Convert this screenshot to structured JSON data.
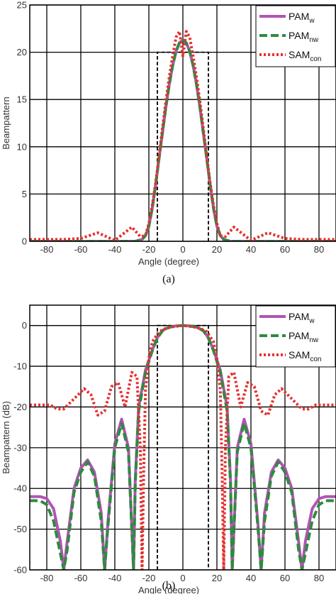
{
  "chart_data": [
    {
      "type": "line",
      "caption": "(a)",
      "xlabel": "Angle (degree)",
      "ylabel": "Beampattern",
      "xlim": [
        -90,
        90
      ],
      "ylim": [
        0,
        25
      ],
      "xticks": [
        -80,
        -60,
        -40,
        -20,
        0,
        20,
        40,
        60,
        80
      ],
      "yticks": [
        0,
        5,
        10,
        15,
        20,
        25
      ],
      "grid": true,
      "legend_position": "top-right",
      "desired_region": {
        "x": [
          -15,
          15
        ],
        "y": 20
      },
      "series": [
        {
          "name": "PAM",
          "sub": "w",
          "color": "#b154b4",
          "dash": "solid",
          "x": [
            -90,
            -40,
            -28,
            -24,
            -22,
            -20,
            -18,
            -16,
            -14,
            -12,
            -10,
            -8,
            -6,
            -4,
            -2,
            0,
            2,
            4,
            6,
            8,
            10,
            12,
            14,
            16,
            18,
            20,
            22,
            24,
            28,
            40,
            90
          ],
          "y": [
            0,
            0,
            0,
            0.2,
            0.6,
            1.6,
            3.5,
            6.0,
            8.8,
            11.5,
            14.2,
            16.6,
            18.6,
            20.1,
            21.0,
            21.3,
            21.0,
            20.1,
            18.6,
            16.6,
            14.2,
            11.5,
            8.8,
            6.0,
            3.5,
            1.6,
            0.6,
            0.2,
            0,
            0,
            0
          ]
        },
        {
          "name": "PAM",
          "sub": "nw",
          "color": "#2e8b3e",
          "dash": "dashed",
          "x": [
            -90,
            -40,
            -28,
            -24,
            -22,
            -20,
            -18,
            -16,
            -14,
            -12,
            -10,
            -8,
            -6,
            -4,
            -2,
            0,
            2,
            4,
            6,
            8,
            10,
            12,
            14,
            16,
            18,
            20,
            22,
            24,
            28,
            40,
            90
          ],
          "y": [
            0,
            0,
            0,
            0.2,
            0.6,
            1.6,
            3.5,
            6.0,
            8.8,
            11.5,
            14.2,
            16.6,
            18.6,
            20.1,
            21.0,
            21.3,
            21.0,
            20.1,
            18.6,
            16.6,
            14.2,
            11.5,
            8.8,
            6.0,
            3.5,
            1.6,
            0.6,
            0.2,
            0,
            0,
            0
          ]
        },
        {
          "name": "SAM",
          "sub": "con",
          "color": "#e53030",
          "dash": "dotted",
          "x": [
            -90,
            -70,
            -60,
            -55,
            -50,
            -45,
            -40,
            -35,
            -30,
            -25,
            -22,
            -20,
            -18,
            -16,
            -14,
            -12,
            -10,
            -8,
            -6,
            -4,
            -2,
            0,
            2,
            4,
            6,
            8,
            10,
            12,
            14,
            16,
            18,
            20,
            22,
            25,
            30,
            35,
            40,
            45,
            50,
            55,
            60,
            70,
            90
          ],
          "y": [
            0.2,
            0.2,
            0.3,
            0.6,
            0.9,
            0.5,
            0.1,
            0.8,
            1.5,
            0.5,
            0.6,
            1.9,
            3.8,
            6.2,
            9.0,
            12.0,
            14.8,
            17.4,
            19.6,
            21.6,
            22.2,
            19.6,
            22.2,
            21.6,
            19.6,
            17.4,
            14.8,
            12.0,
            9.0,
            6.2,
            3.8,
            1.9,
            0.6,
            0.5,
            1.5,
            0.8,
            0.1,
            0.5,
            0.9,
            0.6,
            0.3,
            0.2,
            0.2
          ]
        }
      ]
    },
    {
      "type": "line",
      "caption": "(b)",
      "xlabel": "Angle (degree)",
      "ylabel": "Beampattern (dB)",
      "xlim": [
        -90,
        90
      ],
      "ylim": [
        -60,
        5
      ],
      "xticks": [
        -80,
        -60,
        -40,
        -20,
        0,
        20,
        40,
        60,
        80
      ],
      "yticks": [
        -60,
        -50,
        -40,
        -30,
        -20,
        -10,
        0
      ],
      "grid": true,
      "legend_position": "top-right",
      "desired_region": {
        "x": [
          -15,
          15
        ],
        "y": 0
      },
      "series": [
        {
          "name": "PAM",
          "sub": "w",
          "color": "#b154b4",
          "dash": "solid",
          "x": [
            -90,
            -84,
            -80,
            -76,
            -72,
            -70,
            -68,
            -64,
            -60,
            -56,
            -52,
            -48,
            -46,
            -44,
            -40,
            -36,
            -32,
            -29,
            -28,
            -26,
            -22,
            -18,
            -15,
            -12,
            -8,
            -4,
            0,
            4,
            8,
            12,
            15,
            18,
            22,
            26,
            28,
            29,
            32,
            36,
            40,
            44,
            46,
            48,
            52,
            56,
            60,
            64,
            68,
            70,
            72,
            76,
            80,
            84,
            90
          ],
          "y": [
            -42,
            -42,
            -42.5,
            -45,
            -53,
            -60,
            -53,
            -40,
            -35,
            -33,
            -36,
            -46,
            -60,
            -48,
            -29,
            -23,
            -30,
            -60,
            -38,
            -20,
            -11,
            -6,
            -3,
            -1.2,
            -0.4,
            -0.1,
            0,
            -0.1,
            -0.4,
            -1.2,
            -3,
            -6,
            -11,
            -20,
            -38,
            -60,
            -30,
            -23,
            -29,
            -48,
            -60,
            -46,
            -36,
            -33,
            -35,
            -40,
            -53,
            -60,
            -53,
            -45,
            -42.5,
            -42,
            -42
          ]
        },
        {
          "name": "PAM",
          "sub": "nw",
          "color": "#2e8b3e",
          "dash": "dashed",
          "x": [
            -90,
            -84,
            -80,
            -76,
            -72,
            -70,
            -68,
            -64,
            -60,
            -56,
            -52,
            -48,
            -46,
            -44,
            -40,
            -36,
            -32,
            -29,
            -28,
            -26,
            -22,
            -18,
            -15,
            -12,
            -8,
            -4,
            0,
            4,
            8,
            12,
            15,
            18,
            22,
            26,
            28,
            29,
            32,
            36,
            40,
            44,
            46,
            48,
            52,
            56,
            60,
            64,
            68,
            70,
            72,
            76,
            80,
            84,
            90
          ],
          "y": [
            -43,
            -43,
            -44,
            -48,
            -56,
            -60,
            -55,
            -41,
            -36,
            -33.5,
            -37,
            -48,
            -60,
            -49,
            -30,
            -24,
            -31,
            -60,
            -39,
            -21,
            -11.5,
            -6.2,
            -3.1,
            -1.3,
            -0.4,
            -0.1,
            0,
            -0.1,
            -0.4,
            -1.3,
            -3.1,
            -6.2,
            -11.5,
            -21,
            -39,
            -60,
            -31,
            -24,
            -30,
            -49,
            -60,
            -48,
            -37,
            -33.5,
            -36,
            -41,
            -55,
            -60,
            -56,
            -48,
            -44,
            -43,
            -43
          ]
        },
        {
          "name": "SAM",
          "sub": "con",
          "color": "#e53030",
          "dash": "dotted",
          "x": [
            -90,
            -78,
            -74,
            -70,
            -64,
            -58,
            -54,
            -50,
            -46,
            -42,
            -38,
            -34,
            -30,
            -27,
            -25,
            -24,
            -23,
            -22,
            -20,
            -18,
            -14,
            -10,
            -6,
            -2,
            0,
            2,
            6,
            10,
            14,
            18,
            20,
            22,
            23,
            24,
            25,
            27,
            30,
            34,
            38,
            42,
            46,
            50,
            54,
            58,
            64,
            70,
            74,
            78,
            90
          ],
          "y": [
            -19.5,
            -19.5,
            -20.5,
            -20.5,
            -18,
            -15.5,
            -17,
            -22,
            -21,
            -15,
            -14,
            -20,
            -11.5,
            -12.5,
            -30,
            -60,
            -35,
            -16,
            -8,
            -4,
            -1.5,
            -0.7,
            -0.3,
            -0.1,
            -0.05,
            -0.1,
            -0.3,
            -0.7,
            -1.5,
            -4,
            -8,
            -16,
            -35,
            -60,
            -30,
            -12.5,
            -11.5,
            -20,
            -14,
            -15,
            -21,
            -22,
            -17,
            -15.5,
            -18,
            -20.5,
            -20.5,
            -19.5,
            -19.5
          ]
        }
      ]
    }
  ]
}
